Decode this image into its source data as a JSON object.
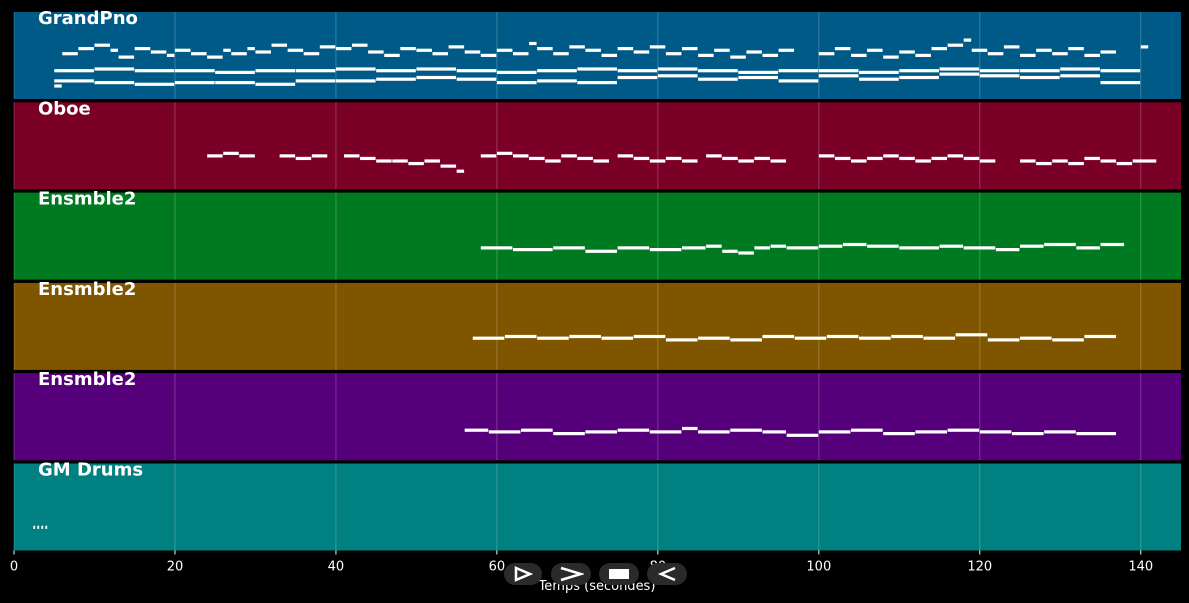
{
  "chart_data": {
    "type": "piano-roll",
    "xlabel": "Temps (secondes)",
    "xlim": [
      0,
      145
    ],
    "xticks": [
      0,
      20,
      40,
      60,
      80,
      100,
      120,
      140
    ],
    "grid": true,
    "tracks": [
      {
        "name": "GrandPno",
        "color": "#005a87",
        "pitch_range": [
          0,
          30
        ],
        "notes": [
          [
            5,
            6,
            3
          ],
          [
            6,
            8,
            22
          ],
          [
            8,
            10,
            25
          ],
          [
            10,
            12,
            27
          ],
          [
            12,
            13,
            24
          ],
          [
            13,
            15,
            20
          ],
          [
            15,
            17,
            25
          ],
          [
            17,
            19,
            23
          ],
          [
            19,
            20,
            21
          ],
          [
            20,
            22,
            24
          ],
          [
            22,
            24,
            22
          ],
          [
            24,
            26,
            20
          ],
          [
            26,
            27,
            24
          ],
          [
            27,
            29,
            22
          ],
          [
            29,
            30,
            25
          ],
          [
            30,
            32,
            23
          ],
          [
            32,
            34,
            27
          ],
          [
            34,
            36,
            24
          ],
          [
            36,
            38,
            22
          ],
          [
            38,
            40,
            26
          ],
          [
            40,
            42,
            25
          ],
          [
            42,
            44,
            27
          ],
          [
            44,
            46,
            23
          ],
          [
            46,
            48,
            21
          ],
          [
            48,
            50,
            25
          ],
          [
            50,
            52,
            24
          ],
          [
            52,
            54,
            22
          ],
          [
            54,
            56,
            26
          ],
          [
            56,
            58,
            23
          ],
          [
            58,
            60,
            21
          ],
          [
            60,
            62,
            24
          ],
          [
            62,
            64,
            22
          ],
          [
            64,
            65,
            28
          ],
          [
            65,
            67,
            25
          ],
          [
            67,
            69,
            22
          ],
          [
            69,
            71,
            26
          ],
          [
            71,
            73,
            24
          ],
          [
            73,
            75,
            21
          ],
          [
            75,
            77,
            25
          ],
          [
            77,
            79,
            23
          ],
          [
            79,
            81,
            26
          ],
          [
            81,
            83,
            22
          ],
          [
            83,
            85,
            25
          ],
          [
            85,
            87,
            21
          ],
          [
            87,
            89,
            24
          ],
          [
            89,
            91,
            20
          ],
          [
            91,
            93,
            23
          ],
          [
            93,
            95,
            21
          ],
          [
            95,
            97,
            24
          ],
          [
            100,
            102,
            22
          ],
          [
            102,
            104,
            25
          ],
          [
            104,
            106,
            21
          ],
          [
            106,
            108,
            24
          ],
          [
            108,
            110,
            20
          ],
          [
            110,
            112,
            23
          ],
          [
            112,
            114,
            21
          ],
          [
            114,
            116,
            25
          ],
          [
            116,
            118,
            27
          ],
          [
            118,
            119,
            30
          ],
          [
            119,
            121,
            24
          ],
          [
            121,
            123,
            22
          ],
          [
            123,
            125,
            26
          ],
          [
            125,
            127,
            21
          ],
          [
            127,
            129,
            24
          ],
          [
            129,
            131,
            22
          ],
          [
            131,
            133,
            25
          ],
          [
            133,
            135,
            21
          ],
          [
            135,
            137,
            23
          ],
          [
            140,
            141,
            26
          ],
          [
            5,
            10,
            6
          ],
          [
            10,
            15,
            5
          ],
          [
            15,
            20,
            4
          ],
          [
            20,
            25,
            5
          ],
          [
            25,
            30,
            5
          ],
          [
            30,
            35,
            4
          ],
          [
            35,
            40,
            6
          ],
          [
            40,
            45,
            6
          ],
          [
            45,
            50,
            7
          ],
          [
            50,
            55,
            8
          ],
          [
            55,
            60,
            7
          ],
          [
            60,
            65,
            5
          ],
          [
            65,
            70,
            6
          ],
          [
            70,
            75,
            5
          ],
          [
            75,
            80,
            8
          ],
          [
            80,
            85,
            9
          ],
          [
            85,
            90,
            7
          ],
          [
            90,
            95,
            8
          ],
          [
            95,
            100,
            6
          ],
          [
            100,
            105,
            9
          ],
          [
            105,
            110,
            7
          ],
          [
            110,
            115,
            8
          ],
          [
            115,
            120,
            10
          ],
          [
            120,
            125,
            9
          ],
          [
            125,
            130,
            8
          ],
          [
            130,
            135,
            9
          ],
          [
            135,
            140,
            5
          ],
          [
            5,
            10,
            12
          ],
          [
            10,
            15,
            13
          ],
          [
            15,
            20,
            12
          ],
          [
            20,
            25,
            12
          ],
          [
            25,
            30,
            11
          ],
          [
            30,
            35,
            12
          ],
          [
            35,
            40,
            12
          ],
          [
            40,
            45,
            13
          ],
          [
            45,
            50,
            12
          ],
          [
            50,
            55,
            13
          ],
          [
            55,
            60,
            12
          ],
          [
            60,
            65,
            11
          ],
          [
            65,
            70,
            12
          ],
          [
            70,
            75,
            13
          ],
          [
            75,
            80,
            12
          ],
          [
            80,
            85,
            13
          ],
          [
            85,
            90,
            12
          ],
          [
            90,
            95,
            11
          ],
          [
            95,
            100,
            12
          ],
          [
            100,
            105,
            12
          ],
          [
            105,
            110,
            11
          ],
          [
            110,
            115,
            12
          ],
          [
            115,
            120,
            13
          ],
          [
            120,
            125,
            12
          ],
          [
            125,
            130,
            12
          ],
          [
            130,
            135,
            13
          ],
          [
            135,
            140,
            12
          ]
        ]
      },
      {
        "name": "Oboe",
        "color": "#7a0028",
        "pitch_range": [
          0,
          20
        ],
        "notes": [
          [
            24,
            26,
            10
          ],
          [
            26,
            28,
            11
          ],
          [
            28,
            30,
            10
          ],
          [
            33,
            35,
            10
          ],
          [
            35,
            37,
            9
          ],
          [
            37,
            39,
            10
          ],
          [
            41,
            43,
            10
          ],
          [
            43,
            45,
            9
          ],
          [
            45,
            47,
            8
          ],
          [
            47,
            49,
            8
          ],
          [
            49,
            51,
            7
          ],
          [
            51,
            53,
            8
          ],
          [
            53,
            55,
            6
          ],
          [
            55,
            56,
            4
          ],
          [
            58,
            60,
            10
          ],
          [
            60,
            62,
            11
          ],
          [
            62,
            64,
            10
          ],
          [
            64,
            66,
            9
          ],
          [
            66,
            68,
            8
          ],
          [
            68,
            70,
            10
          ],
          [
            70,
            72,
            9
          ],
          [
            72,
            74,
            8
          ],
          [
            75,
            77,
            10
          ],
          [
            77,
            79,
            9
          ],
          [
            79,
            81,
            8
          ],
          [
            81,
            83,
            9
          ],
          [
            83,
            85,
            8
          ],
          [
            86,
            88,
            10
          ],
          [
            88,
            90,
            9
          ],
          [
            90,
            92,
            8
          ],
          [
            92,
            94,
            9
          ],
          [
            94,
            96,
            8
          ],
          [
            100,
            102,
            10
          ],
          [
            102,
            104,
            9
          ],
          [
            104,
            106,
            8
          ],
          [
            106,
            108,
            9
          ],
          [
            108,
            110,
            10
          ],
          [
            110,
            112,
            9
          ],
          [
            112,
            114,
            8
          ],
          [
            114,
            116,
            9
          ],
          [
            116,
            118,
            10
          ],
          [
            118,
            120,
            9
          ],
          [
            120,
            122,
            8
          ],
          [
            125,
            127,
            8
          ],
          [
            127,
            129,
            7
          ],
          [
            129,
            131,
            8
          ],
          [
            131,
            133,
            7
          ],
          [
            133,
            135,
            9
          ],
          [
            135,
            137,
            8
          ],
          [
            137,
            139,
            7
          ],
          [
            139,
            142,
            8
          ]
        ]
      },
      {
        "name": "Ensmble2",
        "color": "#007a21",
        "pitch_range": [
          0,
          30
        ],
        "notes": [
          [
            58,
            62,
            14
          ],
          [
            62,
            67,
            13
          ],
          [
            67,
            71,
            14
          ],
          [
            71,
            75,
            12
          ],
          [
            75,
            79,
            14
          ],
          [
            79,
            83,
            13
          ],
          [
            83,
            86,
            14
          ],
          [
            86,
            88,
            15
          ],
          [
            88,
            90,
            12
          ],
          [
            90,
            92,
            11
          ],
          [
            92,
            94,
            14
          ],
          [
            94,
            96,
            15
          ],
          [
            96,
            100,
            14
          ],
          [
            100,
            103,
            15
          ],
          [
            103,
            106,
            16
          ],
          [
            106,
            110,
            15
          ],
          [
            110,
            115,
            14
          ],
          [
            115,
            118,
            15
          ],
          [
            118,
            122,
            14
          ],
          [
            122,
            125,
            13
          ],
          [
            125,
            128,
            15
          ],
          [
            128,
            132,
            16
          ],
          [
            132,
            135,
            14
          ],
          [
            135,
            138,
            16
          ]
        ]
      },
      {
        "name": "Ensmble2",
        "color": "#7f5500",
        "pitch_range": [
          0,
          30
        ],
        "notes": [
          [
            57,
            61,
            14
          ],
          [
            61,
            65,
            15
          ],
          [
            65,
            69,
            14
          ],
          [
            69,
            73,
            15
          ],
          [
            73,
            77,
            14
          ],
          [
            77,
            81,
            15
          ],
          [
            81,
            85,
            13
          ],
          [
            85,
            89,
            14
          ],
          [
            89,
            93,
            13
          ],
          [
            93,
            97,
            15
          ],
          [
            97,
            101,
            14
          ],
          [
            101,
            105,
            15
          ],
          [
            105,
            109,
            14
          ],
          [
            109,
            113,
            15
          ],
          [
            113,
            117,
            14
          ],
          [
            117,
            121,
            16
          ],
          [
            121,
            125,
            13
          ],
          [
            125,
            129,
            14
          ],
          [
            129,
            133,
            13
          ],
          [
            133,
            137,
            15
          ]
        ]
      },
      {
        "name": "Ensmble2",
        "color": "#55007a",
        "pitch_range": [
          0,
          30
        ],
        "notes": [
          [
            56,
            59,
            13
          ],
          [
            59,
            63,
            12
          ],
          [
            63,
            67,
            13
          ],
          [
            67,
            71,
            11
          ],
          [
            71,
            75,
            12
          ],
          [
            75,
            79,
            13
          ],
          [
            79,
            83,
            12
          ],
          [
            83,
            85,
            14
          ],
          [
            85,
            89,
            12
          ],
          [
            89,
            93,
            13
          ],
          [
            93,
            96,
            12
          ],
          [
            96,
            100,
            10
          ],
          [
            100,
            104,
            12
          ],
          [
            104,
            108,
            13
          ],
          [
            108,
            112,
            11
          ],
          [
            112,
            116,
            12
          ],
          [
            116,
            120,
            13
          ],
          [
            120,
            124,
            12
          ],
          [
            124,
            128,
            11
          ],
          [
            128,
            132,
            12
          ],
          [
            132,
            137,
            11
          ]
        ]
      },
      {
        "name": "GM Drums",
        "color": "#008080",
        "pitch_range": [
          0,
          30
        ],
        "notes": [
          [
            2.4,
            2.7,
            9
          ],
          [
            2.9,
            3.2,
            9
          ],
          [
            3.4,
            3.7,
            9
          ],
          [
            3.9,
            4.2,
            9
          ]
        ]
      }
    ]
  },
  "controls": [
    {
      "name": "play-icon"
    },
    {
      "name": "fast-forward-icon"
    },
    {
      "name": "stop-icon"
    },
    {
      "name": "rewind-icon"
    }
  ]
}
